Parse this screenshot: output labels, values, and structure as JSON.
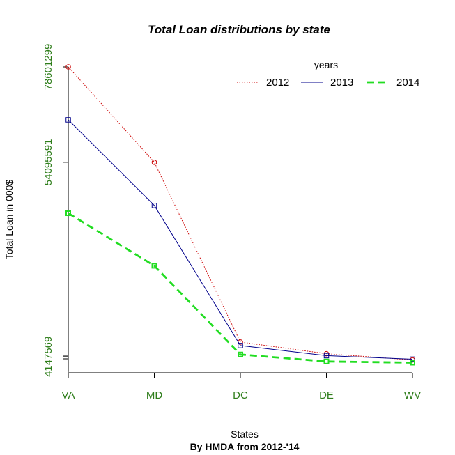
{
  "chart_data": {
    "type": "line",
    "title": "Total Loan distributions by state",
    "subtitle": "By HMDA from 2012-'14",
    "xlabel": "States",
    "ylabel": "Total Loan in 000$",
    "categories": [
      "VA",
      "MD",
      "DC",
      "DE",
      "WV"
    ],
    "y_ticks": [
      4147569,
      54095591,
      78601299
    ],
    "ylim": [
      0,
      78601299
    ],
    "legend": {
      "title": "years",
      "position": "top-right"
    },
    "series": [
      {
        "name": "2012",
        "color": "#cc0000",
        "line": "dotted",
        "marker": "circle",
        "values": [
          78601299,
          54095591,
          7900000,
          4900000,
          3300000
        ]
      },
      {
        "name": "2013",
        "color": "#00008b",
        "line": "solid",
        "marker": "square",
        "values": [
          65000000,
          43000000,
          7000000,
          4400000,
          3500000
        ]
      },
      {
        "name": "2014",
        "color": "#22dd22",
        "line": "dashed",
        "marker": "square",
        "values": [
          41000000,
          27500000,
          4700000,
          2900000,
          2600000
        ]
      }
    ],
    "tick_color": "#2e7d1a",
    "grid": false
  }
}
